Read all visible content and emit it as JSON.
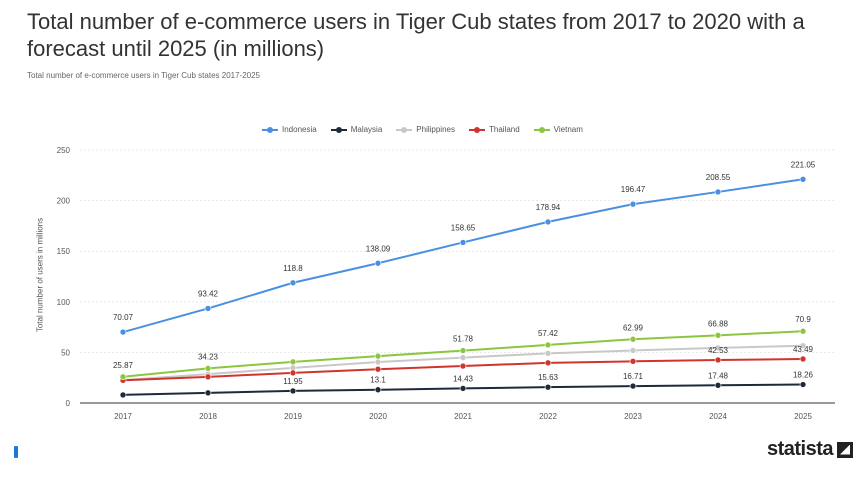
{
  "title": "Total number of e-commerce users in Tiger Cub states from 2017 to 2020 with a forecast until 2025 (in millions)",
  "subtitle": "Total number of e-commerce users in Tiger Cub states 2017-2025",
  "brand": "statista",
  "colors": {
    "Indonesia": "#4a90e2",
    "Malaysia": "#1e2a3a",
    "Philippines": "#c8c8c8",
    "Thailand": "#d0342c",
    "Vietnam": "#8cc63f"
  },
  "chart_data": {
    "type": "line",
    "title": "Total number of e-commerce users in Tiger Cub states from 2017 to 2020 with a forecast until 2025 (in millions)",
    "ylabel": "Total number of users in millions",
    "xlabel": "",
    "ylim": [
      0,
      250
    ],
    "yticks": [
      0,
      50,
      100,
      150,
      200,
      250
    ],
    "categories": [
      "2017",
      "2018",
      "2019",
      "2020",
      "2021",
      "2022",
      "2023",
      "2024",
      "2025"
    ],
    "legend_position": "top",
    "grid": true,
    "series": [
      {
        "name": "Indonesia",
        "values": [
          70.07,
          93.42,
          118.8,
          138.09,
          158.65,
          178.94,
          196.47,
          208.55,
          221.05
        ]
      },
      {
        "name": "Malaysia",
        "values": [
          8,
          10,
          11.95,
          13.1,
          14.43,
          15.63,
          16.71,
          17.48,
          18.26
        ]
      },
      {
        "name": "Philippines",
        "values": [
          22.61,
          28.5,
          34.7,
          40.5,
          44.84,
          49.06,
          51.93,
          54.5,
          56.6
        ]
      },
      {
        "name": "Thailand",
        "values": [
          22.42,
          25.86,
          29.76,
          33.4,
          36.51,
          39.69,
          41.18,
          42.53,
          43.49
        ]
      },
      {
        "name": "Vietnam",
        "values": [
          25.87,
          34.23,
          40.67,
          46.31,
          51.78,
          57.42,
          62.99,
          66.88,
          70.9
        ]
      }
    ],
    "annotated": {
      "Indonesia": [
        "70.07",
        "93.42",
        "118.8",
        "138.09",
        "158.65",
        "178.94",
        "196.47",
        "208.55",
        "221.05"
      ],
      "Malaysia": [
        "",
        "",
        "11.95",
        "13.1",
        "14.43",
        "15.63",
        "16.71",
        "17.48",
        "18.26"
      ],
      "Vietnam": [
        "25.87",
        "34.23",
        "",
        "",
        "51.78",
        "57.42",
        "62.99",
        "66.88",
        "70.9"
      ],
      "Thailand": [
        "",
        "",
        "",
        "",
        "",
        "",
        "",
        "42.53",
        "43.49"
      ]
    }
  }
}
